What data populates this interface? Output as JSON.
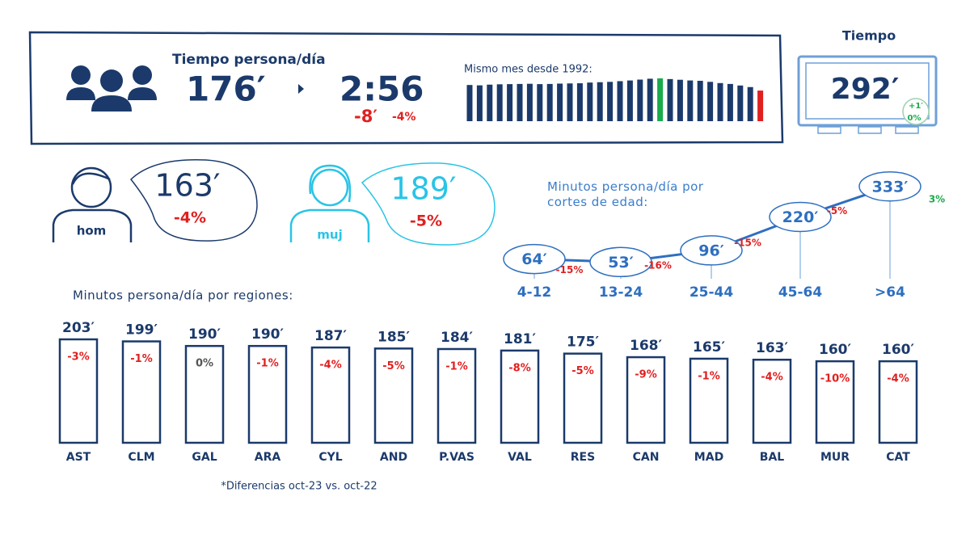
{
  "header": {
    "title": "Tiempo persona/día",
    "minutes": "176′",
    "hours": "2:56",
    "diff_minutes": "-8′",
    "diff_percent": "-4%"
  },
  "tv": {
    "title": "Tiempo",
    "minutes": "292′",
    "diff_minutes": "+1′",
    "diff_percent": "0%"
  },
  "gender": [
    {
      "label": "hom",
      "minutes": "163′",
      "diff": "-4%"
    },
    {
      "label": "muj",
      "minutes": "189′",
      "diff": "-5%"
    }
  ],
  "chart_data": [
    {
      "type": "bar",
      "title": "Mismo mes desde 1992:",
      "values": [
        208,
        206,
        210,
        212,
        213,
        214,
        215,
        213,
        214,
        216,
        217,
        218,
        222,
        224,
        226,
        230,
        234,
        239,
        244,
        246,
        242,
        238,
        234,
        232,
        226,
        219,
        214,
        205,
        196,
        176
      ],
      "color": "#1b3a6b",
      "max_color": "#1aab4b",
      "last_color": "#e02020"
    },
    {
      "type": "line",
      "title": "Minutos persona/día por cortes de edad:",
      "categories": [
        "4-12",
        "13-24",
        "25-44",
        "45-64",
        ">64"
      ],
      "values": [
        64,
        53,
        96,
        220,
        333
      ],
      "value_labels": [
        "64′",
        "53′",
        "96′",
        "220′",
        "333′"
      ],
      "changes": [
        "-15%",
        "-16%",
        "-15%",
        "-5%",
        "3%"
      ],
      "change_colors": [
        "#e02020",
        "#e02020",
        "#e02020",
        "#e02020",
        "#1aab4b"
      ],
      "color": "#2e6fc0"
    },
    {
      "type": "bar",
      "title": "Minutos persona/día por regiones:",
      "categories": [
        "AST",
        "CLM",
        "GAL",
        "ARA",
        "CYL",
        "AND",
        "P.VAS",
        "VAL",
        "RES",
        "CAN",
        "MAD",
        "BAL",
        "MUR",
        "CAT"
      ],
      "values": [
        203,
        199,
        190,
        190,
        187,
        185,
        184,
        181,
        175,
        168,
        165,
        163,
        160,
        160
      ],
      "value_labels": [
        "203′",
        "199′",
        "190′",
        "190′",
        "187′",
        "185′",
        "184′",
        "181′",
        "175′",
        "168′",
        "165′",
        "163′",
        "160′",
        "160′"
      ],
      "changes": [
        "-3%",
        "-1%",
        "0%",
        "-1%",
        "-4%",
        "-5%",
        "-1%",
        "-8%",
        "-5%",
        "-9%",
        "-1%",
        "-4%",
        "-10%",
        "-4%"
      ],
      "change_colors": [
        "#e02020",
        "#e02020",
        "#555555",
        "#e02020",
        "#e02020",
        "#e02020",
        "#e02020",
        "#e02020",
        "#e02020",
        "#e02020",
        "#e02020",
        "#e02020",
        "#e02020",
        "#e02020"
      ],
      "color": "#1b3a6b"
    }
  ],
  "footnote": "*Diferencias oct-23 vs. oct-22"
}
